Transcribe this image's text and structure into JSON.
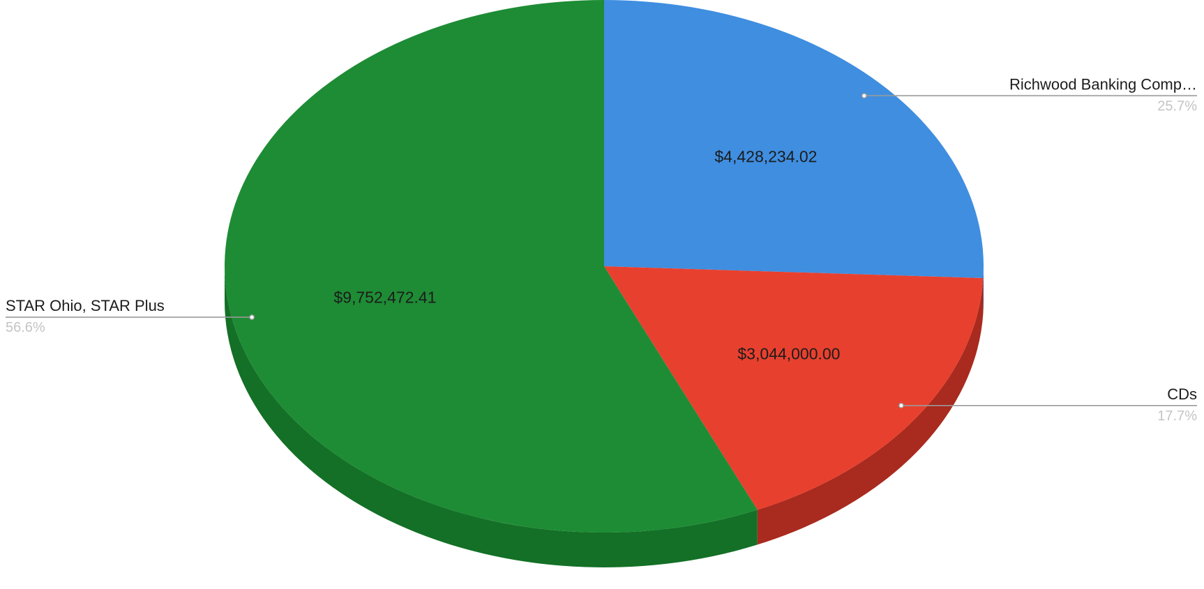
{
  "chart_data": {
    "type": "pie",
    "style": "3d",
    "slices": [
      {
        "label": "Richwood Banking Comp…",
        "value": 4428234.02,
        "value_label": "$4,428,234.02",
        "percent_label": "25.7%",
        "color": "#3f8ee0",
        "side_color": "#2a63a8"
      },
      {
        "label": "CDs",
        "value": 3044000.0,
        "value_label": "$3,044,000.00",
        "percent_label": "17.7%",
        "color": "#e8402e",
        "side_color": "#a92a1e"
      },
      {
        "label": "STAR Ohio, STAR Plus",
        "value": 9752472.41,
        "value_label": "$9,752,472.41",
        "percent_label": "56.6%",
        "color": "#1e8c35",
        "side_color": "#137026"
      }
    ],
    "legend": "pointer labels",
    "title": ""
  }
}
